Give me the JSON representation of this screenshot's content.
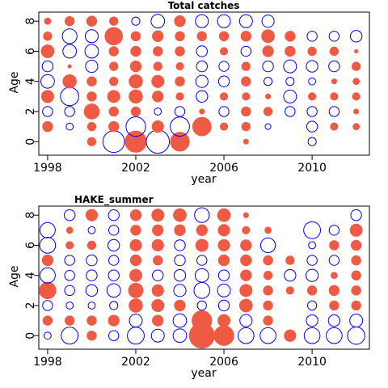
{
  "colors": {
    "positive": "#ee5a44",
    "negative": "#0000ee"
  },
  "chart_data": [
    {
      "type": "bubble",
      "title": "Total catches",
      "xlabel": "year",
      "ylabel": "Age",
      "xlim": [
        1997.6,
        2012.6
      ],
      "ylim": [
        -0.9,
        8.6
      ],
      "xticks": [
        1998,
        2002,
        2006,
        2010
      ],
      "yticks": [
        0,
        2,
        4,
        6,
        8
      ],
      "years": [
        1998,
        1999,
        2000,
        2001,
        2002,
        2003,
        2004,
        2005,
        2006,
        2007,
        2008,
        2009,
        2010,
        2011,
        2012
      ],
      "ages": [
        0,
        1,
        2,
        3,
        4,
        5,
        6,
        7,
        8
      ],
      "grid": false,
      "legend": "none",
      "note": "values = residual size; positive = filled red, negative = open blue, null = not shown",
      "values": [
        [
          0,
          0,
          0.25,
          -1.4,
          1.45,
          -1.6,
          1.15,
          0,
          0,
          0.1,
          0,
          0,
          -0.2,
          0,
          0
        ],
        [
          0.35,
          -0.15,
          0.25,
          0.35,
          -1.15,
          0.45,
          -1.1,
          1.1,
          0.2,
          0.25,
          -0.1,
          0,
          -0.35,
          0.2,
          0.15
        ],
        [
          -0.3,
          -0.3,
          0.75,
          0.3,
          0.3,
          -0.15,
          -0.3,
          0.1,
          -0.3,
          0.3,
          0.25,
          -0.3,
          -0.3,
          -0.3,
          0.1
        ],
        [
          0.5,
          -1.0,
          0.3,
          0.5,
          0.6,
          0.4,
          0.2,
          -0.4,
          0.2,
          0.2,
          0.1,
          -0.5,
          0.2,
          0.2,
          0.2
        ],
        [
          -0.55,
          0.6,
          0.3,
          0.25,
          0.6,
          0.5,
          0.3,
          -0.45,
          -0.35,
          0.3,
          -0.2,
          -0.2,
          -0.15,
          0.1,
          0.15
        ],
        [
          -0.35,
          0.05,
          -0.45,
          0.25,
          0.4,
          0.25,
          0.2,
          -0.35,
          -0.3,
          0.25,
          -0.35,
          -0.5,
          -0.4,
          -0.35,
          0.25
        ],
        [
          0.55,
          -0.55,
          -0.55,
          0.3,
          0.35,
          0.3,
          0.3,
          -0.35,
          0.2,
          -0.3,
          0.4,
          0.35,
          0.25,
          0.25,
          0.05
        ],
        [
          0.25,
          -0.65,
          -0.5,
          1.0,
          0.3,
          0.4,
          0.3,
          0.3,
          0.3,
          0.35,
          0.55,
          0.35,
          -0.3,
          -0.3,
          -0.4
        ],
        [
          0.15,
          0.3,
          0.35,
          0.25,
          -0.2,
          -0.55,
          0.4,
          -0.5,
          -0.5,
          -0.5,
          -0.45,
          null,
          null,
          null,
          null
        ]
      ]
    },
    {
      "type": "bubble",
      "title": "HAKE_summer",
      "xlabel": "year",
      "ylabel": "Age",
      "xlim": [
        1997.6,
        2012.6
      ],
      "ylim": [
        -0.9,
        8.6
      ],
      "xticks": [
        1998,
        2002,
        2006,
        2010
      ],
      "yticks": [
        0,
        2,
        4,
        6,
        8
      ],
      "years": [
        1998,
        1999,
        2000,
        2001,
        2002,
        2003,
        2004,
        2005,
        2006,
        2007,
        2008,
        2009,
        2010,
        2011,
        2012
      ],
      "ages": [
        0,
        1,
        2,
        3,
        4,
        5,
        6,
        7,
        8
      ],
      "grid": false,
      "legend": "none",
      "note": "values = residual size; positive = filled red, negative = open blue, null = not shown",
      "values": [
        [
          -0.15,
          -0.85,
          0.3,
          -0.3,
          -0.85,
          -0.5,
          -0.55,
          2.0,
          1.25,
          -0.75,
          -0.75,
          0.45,
          -0.75,
          -0.75,
          -0.9
        ],
        [
          0.3,
          0.3,
          0.3,
          0.4,
          -0.5,
          0.4,
          -0.55,
          1.25,
          0.5,
          -0.45,
          0.3,
          null,
          -0.4,
          -0.4,
          -0.5
        ],
        [
          -0.3,
          -0.15,
          -0.15,
          -0.2,
          0.6,
          0.5,
          0.4,
          -0.25,
          -0.35,
          0.55,
          0.3,
          null,
          -0.25,
          0.3,
          0.3
        ],
        [
          0.9,
          -0.3,
          -0.4,
          -0.55,
          0.7,
          0.45,
          -0.45,
          -0.75,
          -0.5,
          0.5,
          0.3,
          0.2,
          0.3,
          0.35,
          0.3
        ],
        [
          -0.7,
          -0.3,
          -0.35,
          -0.35,
          0.5,
          -0.35,
          -0.4,
          -0.55,
          -0.35,
          0.4,
          0.25,
          -0.4,
          -0.45,
          0.15,
          0.3
        ],
        [
          0.4,
          -0.3,
          -0.35,
          -0.3,
          0.4,
          0.3,
          -0.35,
          -0.3,
          0.4,
          0.4,
          0.3,
          0.25,
          -0.3,
          -0.3,
          0.3
        ],
        [
          -0.75,
          0.2,
          0.25,
          -0.4,
          0.45,
          0.45,
          -0.35,
          0.5,
          0.45,
          0.4,
          -0.65,
          null,
          -0.15,
          0.3,
          0.35
        ],
        [
          -0.7,
          0.15,
          -0.15,
          -0.3,
          0.35,
          0.4,
          0.4,
          0.4,
          0.45,
          0.2,
          0.15,
          null,
          -0.85,
          -0.3,
          0.5
        ],
        [
          null,
          -0.35,
          0.45,
          -0.35,
          0.4,
          0.5,
          0.55,
          -0.65,
          0.55,
          0.1,
          null,
          null,
          null,
          null,
          -0.35
        ]
      ]
    }
  ]
}
